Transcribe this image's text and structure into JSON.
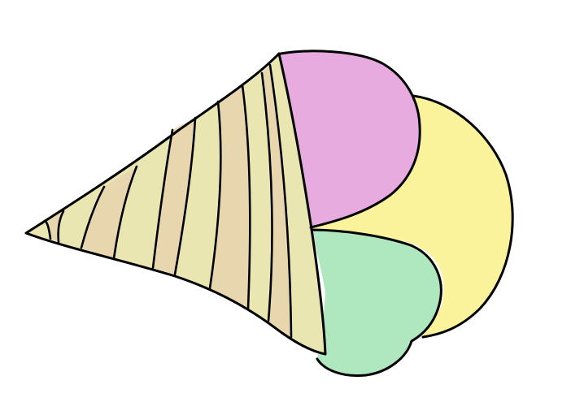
{
  "drawing": {
    "subject": "",
    "colors": {
      "background": "#ffffff",
      "outline": "#000000",
      "cone_light": "#e9e6b2",
      "cone_dark": "#e8d6ae",
      "scoop_pink": "#e8abe0",
      "scoop_yellow": "#faf39b",
      "scoop_green": "#afe8be"
    },
    "scoop_count": 3,
    "cone_stripe_count": 10
  }
}
